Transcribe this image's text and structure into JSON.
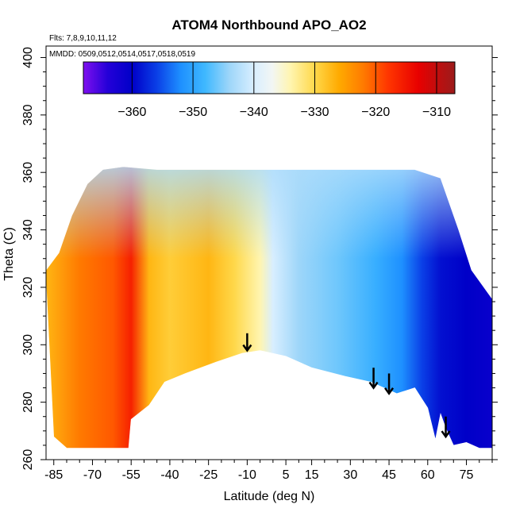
{
  "chart_data": {
    "type": "heatmap",
    "title": "ATOM4 Northbound APO_AO2",
    "annotations": [
      "Flts: 7,8,9,10,11,12",
      "MMDD: 0509,0512,0514,0517,0518,0519"
    ],
    "xlabel": "Latitude (deg N)",
    "ylabel": "Theta (C)",
    "xlim": [
      -88,
      85
    ],
    "ylim": [
      260,
      404
    ],
    "x_ticks": [
      -85,
      -70,
      -55,
      -40,
      -25,
      -10,
      5,
      15,
      30,
      45,
      60,
      75
    ],
    "y_ticks": [
      260,
      280,
      300,
      320,
      340,
      360,
      380,
      400
    ],
    "colorbar": {
      "min": -368,
      "max": -307,
      "ticks": [
        -360,
        -350,
        -340,
        -330,
        -320,
        -310
      ],
      "colors": [
        {
          "value": -368,
          "color": "#7f10ef"
        },
        {
          "value": -364,
          "color": "#2400d8"
        },
        {
          "value": -360,
          "color": "#0000c8"
        },
        {
          "value": -356,
          "color": "#0a3ee6"
        },
        {
          "value": -352,
          "color": "#1e90ff"
        },
        {
          "value": -348,
          "color": "#3fb8ff"
        },
        {
          "value": -344,
          "color": "#9ed6f9"
        },
        {
          "value": -340,
          "color": "#d8eeff"
        },
        {
          "value": -337,
          "color": "#f2f6f4"
        },
        {
          "value": -334,
          "color": "#fff5b0"
        },
        {
          "value": -330,
          "color": "#ffd84a"
        },
        {
          "value": -326,
          "color": "#ffaa00"
        },
        {
          "value": -322,
          "color": "#ff7a00"
        },
        {
          "value": -318,
          "color": "#ff3600"
        },
        {
          "value": -313,
          "color": "#e80000"
        },
        {
          "value": -307,
          "color": "#9b1b1b"
        }
      ]
    },
    "field_knots": [
      {
        "lat": -88,
        "apo": -327
      },
      {
        "lat": -75,
        "apo": -322
      },
      {
        "lat": -62,
        "apo": -320
      },
      {
        "lat": -55,
        "apo": -316
      },
      {
        "lat": -48,
        "apo": -327
      },
      {
        "lat": -40,
        "apo": -329
      },
      {
        "lat": -25,
        "apo": -327
      },
      {
        "lat": -15,
        "apo": -330
      },
      {
        "lat": -5,
        "apo": -334
      },
      {
        "lat": 0,
        "apo": -340
      },
      {
        "lat": 10,
        "apo": -344
      },
      {
        "lat": 25,
        "apo": -346
      },
      {
        "lat": 40,
        "apo": -349
      },
      {
        "lat": 50,
        "apo": -352
      },
      {
        "lat": 58,
        "apo": -356
      },
      {
        "lat": 65,
        "apo": -359
      },
      {
        "lat": 75,
        "apo": -360
      },
      {
        "lat": 85,
        "apo": -361
      }
    ],
    "coverage_top": [
      {
        "lat": -88,
        "theta": 326
      },
      {
        "lat": -83,
        "theta": 332
      },
      {
        "lat": -78,
        "theta": 345
      },
      {
        "lat": -72,
        "theta": 356
      },
      {
        "lat": -66,
        "theta": 361
      },
      {
        "lat": -58,
        "theta": 362
      },
      {
        "lat": -45,
        "theta": 361
      },
      {
        "lat": -20,
        "theta": 361
      },
      {
        "lat": 3,
        "theta": 361
      },
      {
        "lat": 20,
        "theta": 361
      },
      {
        "lat": 40,
        "theta": 361
      },
      {
        "lat": 55,
        "theta": 361
      },
      {
        "lat": 65,
        "theta": 358
      },
      {
        "lat": 72,
        "theta": 340
      },
      {
        "lat": 77,
        "theta": 326
      },
      {
        "lat": 85,
        "theta": 316
      }
    ],
    "coverage_bottom": [
      {
        "lat": -88,
        "theta": 322
      },
      {
        "lat": -85,
        "theta": 268
      },
      {
        "lat": -80,
        "theta": 264
      },
      {
        "lat": -66,
        "theta": 264
      },
      {
        "lat": -60,
        "theta": 264
      },
      {
        "lat": -56,
        "theta": 264
      },
      {
        "lat": -55,
        "theta": 274
      },
      {
        "lat": -48,
        "theta": 279
      },
      {
        "lat": -42,
        "theta": 287
      },
      {
        "lat": -34,
        "theta": 290
      },
      {
        "lat": -22,
        "theta": 294
      },
      {
        "lat": -12,
        "theta": 297
      },
      {
        "lat": -5,
        "theta": 298
      },
      {
        "lat": 5,
        "theta": 296
      },
      {
        "lat": 15,
        "theta": 292
      },
      {
        "lat": 28,
        "theta": 289
      },
      {
        "lat": 38,
        "theta": 287
      },
      {
        "lat": 48,
        "theta": 283
      },
      {
        "lat": 55,
        "theta": 285
      },
      {
        "lat": 60,
        "theta": 278
      },
      {
        "lat": 63,
        "theta": 267
      },
      {
        "lat": 65,
        "theta": 276
      },
      {
        "lat": 67,
        "theta": 271
      },
      {
        "lat": 70,
        "theta": 265
      },
      {
        "lat": 75,
        "theta": 266
      },
      {
        "lat": 80,
        "theta": 264
      },
      {
        "lat": 85,
        "theta": 264
      }
    ],
    "arrows": [
      {
        "lat": -10,
        "theta_top": 304,
        "theta_tip": 298
      },
      {
        "lat": 39,
        "theta_top": 292,
        "theta_tip": 285
      },
      {
        "lat": 45,
        "theta_top": 290,
        "theta_tip": 283
      },
      {
        "lat": 67,
        "theta_top": 275,
        "theta_tip": 268
      }
    ]
  }
}
